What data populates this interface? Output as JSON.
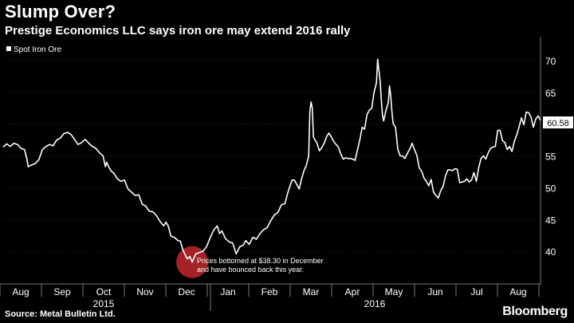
{
  "header": {
    "title": "Slump Over?",
    "subtitle": "Prestige Economics LLC says iron ore may extend 2016 rally"
  },
  "footer": {
    "source": "Source: Metal Bulletin Ltd.",
    "brand": "Bloomberg"
  },
  "colors": {
    "background": "#000000",
    "line": "#ffffff",
    "highlight": "#c0282d",
    "axis": "#9a9a9a"
  },
  "chart_data": {
    "type": "line",
    "legend": {
      "label": "Spot Iron Ore",
      "placement": "top-left"
    },
    "ylim": [
      35,
      73
    ],
    "yticks": [
      40,
      45,
      50,
      55,
      60,
      65,
      70
    ],
    "x_months": [
      "Aug",
      "Sep",
      "Oct",
      "Nov",
      "Dec",
      "Jan",
      "Feb",
      "Mar",
      "Apr",
      "May",
      "Jun",
      "Jul",
      "Aug"
    ],
    "x_years": [
      "2015",
      "2016"
    ],
    "last_value_label": "60.58",
    "annotation": "Prices bottomed at $38.30 in December and have bounced back this year.",
    "series": [
      {
        "name": "Spot Iron Ore",
        "points": [
          [
            0,
            56.4
          ],
          [
            3,
            56.9
          ],
          [
            6,
            56.5
          ],
          [
            9,
            57.0
          ],
          [
            12,
            56.8
          ],
          [
            15,
            56.2
          ],
          [
            18,
            56.0
          ],
          [
            20,
            54.5
          ],
          [
            21,
            53.3
          ],
          [
            24,
            53.6
          ],
          [
            27,
            53.8
          ],
          [
            30,
            54.4
          ],
          [
            33,
            56.0
          ],
          [
            36,
            56.5
          ],
          [
            39,
            56.8
          ],
          [
            42,
            56.6
          ],
          [
            45,
            57.5
          ],
          [
            48,
            57.8
          ],
          [
            51,
            58.5
          ],
          [
            54,
            58.7
          ],
          [
            57,
            58.4
          ],
          [
            60,
            57.6
          ],
          [
            63,
            56.8
          ],
          [
            66,
            57.1
          ],
          [
            69,
            57.6
          ],
          [
            72,
            57.0
          ],
          [
            75,
            56.5
          ],
          [
            78,
            56.2
          ],
          [
            81,
            55.5
          ],
          [
            84,
            55.0
          ],
          [
            86,
            53.3
          ],
          [
            87,
            54.0
          ],
          [
            89,
            53.2
          ],
          [
            91,
            52.6
          ],
          [
            93,
            52.3
          ],
          [
            96,
            51.4
          ],
          [
            99,
            51.0
          ],
          [
            102,
            51.2
          ],
          [
            105,
            49.8
          ],
          [
            108,
            49.3
          ],
          [
            111,
            48.8
          ],
          [
            114,
            48.9
          ],
          [
            117,
            47.4
          ],
          [
            120,
            47.1
          ],
          [
            123,
            46.3
          ],
          [
            126,
            46.2
          ],
          [
            129,
            45.6
          ],
          [
            132,
            44.7
          ],
          [
            135,
            44.0
          ],
          [
            137,
            44.6
          ],
          [
            139,
            43.9
          ],
          [
            141,
            42.4
          ],
          [
            144,
            42.2
          ],
          [
            147,
            41.7
          ],
          [
            149,
            41.6
          ],
          [
            151,
            40.3
          ],
          [
            153,
            39.5
          ],
          [
            155,
            38.8
          ],
          [
            157,
            39.2
          ],
          [
            159,
            38.3
          ],
          [
            162,
            39.6
          ],
          [
            165,
            39.8
          ],
          [
            168,
            40.0
          ],
          [
            171,
            40.7
          ],
          [
            174,
            42.1
          ],
          [
            177,
            43.3
          ],
          [
            180,
            44.0
          ],
          [
            182,
            42.8
          ],
          [
            184,
            43.2
          ],
          [
            187,
            42.0
          ],
          [
            190,
            41.5
          ],
          [
            193,
            41.3
          ],
          [
            196,
            39.6
          ],
          [
            199,
            40.7
          ],
          [
            202,
            41.0
          ],
          [
            204,
            41.7
          ],
          [
            207,
            41.1
          ],
          [
            210,
            42.2
          ],
          [
            213,
            41.9
          ],
          [
            216,
            42.8
          ],
          [
            219,
            43.4
          ],
          [
            222,
            43.7
          ],
          [
            225,
            44.8
          ],
          [
            228,
            45.7
          ],
          [
            231,
            46.1
          ],
          [
            234,
            47.3
          ],
          [
            237,
            47.5
          ],
          [
            240,
            49.6
          ],
          [
            243,
            51.2
          ],
          [
            245,
            51.2
          ],
          [
            247,
            50.5
          ],
          [
            249,
            49.8
          ],
          [
            251,
            51.4
          ],
          [
            253,
            52.7
          ],
          [
            255,
            53.5
          ],
          [
            257,
            55.0
          ],
          [
            258,
            62.0
          ],
          [
            259,
            63.5
          ],
          [
            260,
            62.5
          ],
          [
            261,
            58.0
          ],
          [
            262,
            57.6
          ],
          [
            264,
            57.0
          ],
          [
            266,
            55.8
          ],
          [
            268,
            56.3
          ],
          [
            270,
            57.0
          ],
          [
            272,
            58.0
          ],
          [
            274,
            58.6
          ],
          [
            276,
            58.0
          ],
          [
            278,
            57.3
          ],
          [
            280,
            56.8
          ],
          [
            282,
            56.4
          ],
          [
            284,
            55.3
          ],
          [
            286,
            54.5
          ],
          [
            288,
            54.7
          ],
          [
            290,
            54.6
          ],
          [
            292,
            54.6
          ],
          [
            294,
            54.5
          ],
          [
            296,
            54.3
          ],
          [
            298,
            56.0
          ],
          [
            300,
            57.5
          ],
          [
            302,
            59.5
          ],
          [
            304,
            59.2
          ],
          [
            306,
            61.5
          ],
          [
            308,
            62.2
          ],
          [
            310,
            62.5
          ],
          [
            312,
            65.0
          ],
          [
            314,
            66.5
          ],
          [
            315,
            70.2
          ],
          [
            316,
            68.5
          ],
          [
            317,
            67.0
          ],
          [
            318,
            64.0
          ],
          [
            319,
            61.5
          ],
          [
            320,
            60.5
          ],
          [
            322,
            62.2
          ],
          [
            324,
            63.4
          ],
          [
            325,
            66.0
          ],
          [
            326,
            64.5
          ],
          [
            327,
            62.0
          ],
          [
            328,
            60.1
          ],
          [
            330,
            59.5
          ],
          [
            332,
            56.0
          ],
          [
            334,
            55.0
          ],
          [
            336,
            55.0
          ],
          [
            338,
            54.6
          ],
          [
            340,
            55.4
          ],
          [
            342,
            56.1
          ],
          [
            344,
            57.0
          ],
          [
            346,
            56.0
          ],
          [
            348,
            55.1
          ],
          [
            350,
            53.1
          ],
          [
            352,
            52.6
          ],
          [
            354,
            51.5
          ],
          [
            356,
            51.0
          ],
          [
            358,
            50.3
          ],
          [
            360,
            51.3
          ],
          [
            362,
            49.3
          ],
          [
            364,
            48.8
          ],
          [
            366,
            48.4
          ],
          [
            368,
            49.5
          ],
          [
            370,
            50.2
          ],
          [
            372,
            51.8
          ],
          [
            374,
            52.8
          ],
          [
            376,
            52.8
          ],
          [
            378,
            52.7
          ],
          [
            380,
            53.0
          ],
          [
            382,
            52.9
          ],
          [
            384,
            50.8
          ],
          [
            386,
            50.9
          ],
          [
            388,
            51.0
          ],
          [
            390,
            51.4
          ],
          [
            392,
            50.9
          ],
          [
            394,
            51.2
          ],
          [
            396,
            52.4
          ],
          [
            398,
            51.0
          ],
          [
            400,
            53.2
          ],
          [
            402,
            54.6
          ],
          [
            404,
            55.0
          ],
          [
            406,
            54.5
          ],
          [
            408,
            55.5
          ],
          [
            410,
            56.2
          ],
          [
            412,
            56.4
          ],
          [
            414,
            56.5
          ],
          [
            416,
            59.0
          ],
          [
            418,
            59.0
          ],
          [
            420,
            57.4
          ],
          [
            422,
            57.1
          ],
          [
            424,
            56.0
          ],
          [
            426,
            56.5
          ],
          [
            428,
            55.7
          ],
          [
            430,
            57.3
          ],
          [
            432,
            58.3
          ],
          [
            434,
            59.6
          ],
          [
            436,
            61.0
          ],
          [
            438,
            59.9
          ],
          [
            440,
            61.9
          ],
          [
            442,
            61.8
          ],
          [
            444,
            61.1
          ],
          [
            446,
            59.5
          ],
          [
            448,
            60.8
          ],
          [
            450,
            61.3
          ],
          [
            452,
            60.58
          ]
        ]
      }
    ]
  }
}
